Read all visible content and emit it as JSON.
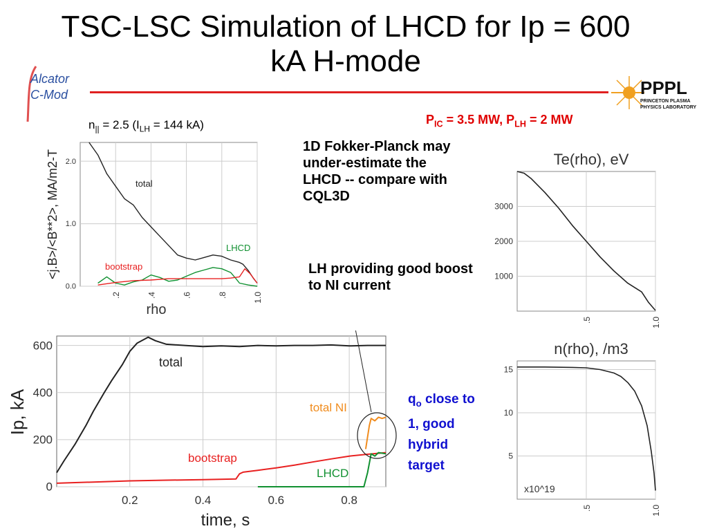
{
  "title": "TSC-LSC Simulation of LHCD for Ip = 600 kA H-mode",
  "logos": {
    "left": "Alcator C-Mod",
    "right_main": "PPPL",
    "right_sub1": "PRINCETON PLASMA",
    "right_sub2": "PHYSICS LABORATORY"
  },
  "power_note": {
    "pic_label": "P",
    "pic_sub": "IC",
    "pic_value": " = 3.5 MW, P",
    "plh_sub": "LH",
    "plh_value": " = 2 MW"
  },
  "fokker_note": "1D Fokker-Planck may under-estimate the LHCD -- compare with CQL3D",
  "lh_note": "LH providing good boost to NI current",
  "q_note": {
    "q": "q",
    "q_sub": "o",
    "rest": " close to 1, good hybrid target"
  },
  "colors": {
    "red": "#e82020",
    "green": "#109030",
    "orange": "#f08c1e",
    "black": "#222222",
    "blue": "#1010d0"
  },
  "chart_data": [
    {
      "id": "current-density",
      "type": "line",
      "subtitle_parts": {
        "n": "n",
        "n_sub": "||",
        "mid": " = 2.5 (I",
        "i_sub": "LH",
        "end": " = 144 kA)"
      },
      "xlabel": "rho",
      "ylabel": "<j.B>/<B**2>, MA/m2-T",
      "xlim": [
        0.0,
        1.0
      ],
      "ylim": [
        0.0,
        2.3
      ],
      "xticks": [
        ".2",
        ".4",
        ".6",
        ".8",
        "1.0"
      ],
      "xtick_values": [
        0.2,
        0.4,
        0.6,
        0.8,
        1.0
      ],
      "yticks": [
        "0.0",
        "1.0",
        "2.0"
      ],
      "ytick_values": [
        0.0,
        1.0,
        2.0
      ],
      "annotations": [
        "total",
        "LHCD",
        "bootstrap"
      ],
      "series": [
        {
          "name": "total",
          "color": "#222222",
          "x": [
            0.05,
            0.1,
            0.15,
            0.2,
            0.25,
            0.3,
            0.35,
            0.4,
            0.45,
            0.5,
            0.55,
            0.6,
            0.65,
            0.7,
            0.75,
            0.8,
            0.85,
            0.9,
            0.92,
            0.95,
            0.98,
            1.0
          ],
          "y": [
            2.3,
            2.1,
            1.8,
            1.6,
            1.4,
            1.3,
            1.1,
            0.95,
            0.8,
            0.65,
            0.5,
            0.45,
            0.42,
            0.46,
            0.5,
            0.48,
            0.42,
            0.38,
            0.35,
            0.25,
            0.12,
            0.05
          ]
        },
        {
          "name": "LHCD",
          "color": "#109030",
          "x": [
            0.1,
            0.15,
            0.2,
            0.25,
            0.3,
            0.35,
            0.4,
            0.45,
            0.5,
            0.55,
            0.6,
            0.65,
            0.7,
            0.75,
            0.8,
            0.85,
            0.88,
            0.9,
            0.95,
            1.0
          ],
          "y": [
            0.05,
            0.15,
            0.05,
            0.02,
            0.07,
            0.1,
            0.18,
            0.14,
            0.08,
            0.1,
            0.16,
            0.22,
            0.26,
            0.3,
            0.28,
            0.22,
            0.12,
            0.05,
            0.02,
            0.0
          ]
        },
        {
          "name": "bootstrap",
          "color": "#e82020",
          "x": [
            0.1,
            0.2,
            0.3,
            0.4,
            0.5,
            0.6,
            0.7,
            0.8,
            0.85,
            0.9,
            0.93,
            0.96,
            1.0
          ],
          "y": [
            0.02,
            0.06,
            0.09,
            0.1,
            0.12,
            0.12,
            0.12,
            0.12,
            0.13,
            0.15,
            0.28,
            0.2,
            0.05
          ]
        }
      ]
    },
    {
      "id": "te-profile",
      "type": "line",
      "title": "Te(rho), eV",
      "xlim": [
        0.0,
        1.0
      ],
      "ylim": [
        0,
        4000
      ],
      "xticks": [
        ".5",
        "1.0"
      ],
      "xtick_values": [
        0.5,
        1.0
      ],
      "yticks": [
        "1000",
        "2000",
        "3000"
      ],
      "ytick_values": [
        1000,
        2000,
        3000
      ],
      "series": [
        {
          "name": "Te",
          "color": "#222222",
          "x": [
            0.0,
            0.05,
            0.1,
            0.2,
            0.3,
            0.4,
            0.5,
            0.6,
            0.7,
            0.8,
            0.9,
            0.95,
            1.0
          ],
          "y": [
            4000,
            3950,
            3800,
            3400,
            2950,
            2450,
            2000,
            1550,
            1150,
            800,
            550,
            250,
            20
          ]
        }
      ]
    },
    {
      "id": "n-profile",
      "type": "line",
      "title": "n(rho), /m3",
      "scale_note": "x10^19",
      "xlim": [
        0.0,
        1.0
      ],
      "ylim": [
        0,
        16
      ],
      "xticks": [
        ".5",
        "1.0"
      ],
      "xtick_values": [
        0.5,
        1.0
      ],
      "yticks": [
        "5",
        "10",
        "15"
      ],
      "ytick_values": [
        5,
        10,
        15
      ],
      "series": [
        {
          "name": "n",
          "color": "#222222",
          "x": [
            0.0,
            0.2,
            0.4,
            0.5,
            0.6,
            0.7,
            0.75,
            0.8,
            0.85,
            0.9,
            0.94,
            0.97,
            0.99,
            1.0
          ],
          "y": [
            15.3,
            15.3,
            15.25,
            15.2,
            15.0,
            14.6,
            14.2,
            13.5,
            12.5,
            10.8,
            8.5,
            5.5,
            3.0,
            1.0
          ]
        }
      ]
    },
    {
      "id": "ip-time",
      "type": "line",
      "xlabel": "time, s",
      "ylabel": "Ip, kA",
      "xlim": [
        0.0,
        0.9
      ],
      "ylim": [
        0,
        640
      ],
      "xticks": [
        "0.2",
        "0.4",
        "0.6",
        "0.8"
      ],
      "xtick_values": [
        0.2,
        0.4,
        0.6,
        0.8
      ],
      "yticks": [
        "0",
        "200",
        "400",
        "600"
      ],
      "ytick_values": [
        0,
        200,
        400,
        600
      ],
      "annotations": [
        "total",
        "total NI",
        "bootstrap",
        "LHCD"
      ],
      "series": [
        {
          "name": "total",
          "color": "#222222",
          "x": [
            0.0,
            0.02,
            0.05,
            0.08,
            0.1,
            0.13,
            0.15,
            0.18,
            0.2,
            0.22,
            0.25,
            0.27,
            0.3,
            0.35,
            0.4,
            0.45,
            0.5,
            0.55,
            0.6,
            0.65,
            0.7,
            0.75,
            0.8,
            0.85,
            0.9
          ],
          "y": [
            60,
            110,
            180,
            260,
            320,
            400,
            450,
            520,
            575,
            610,
            635,
            620,
            605,
            600,
            595,
            598,
            595,
            600,
            598,
            600,
            600,
            602,
            598,
            600,
            600
          ]
        },
        {
          "name": "total NI",
          "color": "#f08c1e",
          "x": [
            0.845,
            0.855,
            0.86,
            0.87,
            0.88,
            0.89,
            0.9
          ],
          "y": [
            160,
            260,
            290,
            280,
            295,
            290,
            295
          ]
        },
        {
          "name": "bootstrap",
          "color": "#e82020",
          "x": [
            0.0,
            0.1,
            0.2,
            0.3,
            0.4,
            0.49,
            0.5,
            0.51,
            0.55,
            0.6,
            0.65,
            0.7,
            0.75,
            0.8,
            0.85,
            0.9
          ],
          "y": [
            15,
            20,
            25,
            28,
            30,
            33,
            55,
            62,
            70,
            80,
            92,
            105,
            118,
            130,
            138,
            145
          ]
        },
        {
          "name": "LHCD",
          "color": "#109030",
          "x": [
            0.55,
            0.6,
            0.7,
            0.8,
            0.84,
            0.85,
            0.86,
            0.87,
            0.88,
            0.9
          ],
          "y": [
            0,
            0,
            0,
            0,
            0,
            60,
            140,
            130,
            145,
            140
          ]
        }
      ]
    }
  ]
}
